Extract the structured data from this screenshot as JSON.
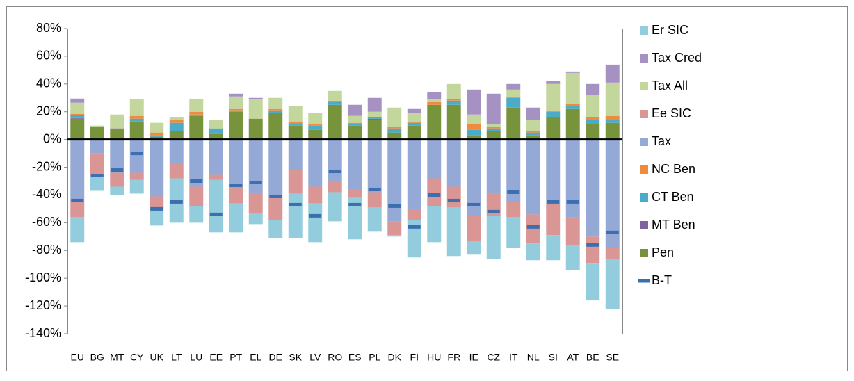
{
  "chart_data": {
    "type": "stacked-bar",
    "categories": [
      "EU",
      "BG",
      "MT",
      "CY",
      "UK",
      "LT",
      "LU",
      "EE",
      "PT",
      "EL",
      "DE",
      "SK",
      "LV",
      "RO",
      "ES",
      "PL",
      "DK",
      "FI",
      "HU",
      "FR",
      "IE",
      "CZ",
      "IT",
      "NL",
      "SI",
      "AT",
      "BE",
      "SE"
    ],
    "series": [
      {
        "name": "Pen",
        "color": "#77933c",
        "values": [
          15,
          9,
          7,
          13,
          2,
          6,
          17,
          4,
          20,
          15,
          19,
          10,
          7,
          25,
          10,
          14,
          5,
          10,
          25,
          25,
          3,
          6,
          23,
          3,
          16,
          22,
          11,
          12
        ]
      },
      {
        "name": "MT Ben",
        "color": "#7f63a1",
        "values": [
          0.5,
          0,
          1,
          0,
          0,
          0,
          0,
          0,
          0,
          0,
          0,
          0,
          0,
          0,
          0,
          1,
          0,
          0,
          0,
          0,
          0,
          0,
          0,
          0,
          0,
          0,
          0,
          0
        ]
      },
      {
        "name": "CT Ben",
        "color": "#4aacc6",
        "values": [
          2,
          0,
          0,
          2,
          1,
          6,
          1,
          4,
          1,
          0,
          2,
          1,
          3,
          2,
          1,
          1,
          3,
          2,
          0,
          3,
          4,
          2,
          7,
          2,
          4,
          2,
          3,
          2
        ]
      },
      {
        "name": "NC Ben",
        "color": "#f08a3c",
        "values": [
          1,
          0,
          0,
          2,
          2,
          2,
          2,
          0,
          1,
          0,
          1,
          2,
          1,
          1,
          1,
          0,
          1,
          1,
          2,
          1,
          4,
          1,
          1,
          1,
          1,
          2,
          2,
          3
        ]
      },
      {
        "name": "Tax",
        "color": "#95a9d6",
        "values": [
          -45,
          -10,
          -24,
          -24,
          -41,
          -17,
          -34,
          -25,
          -35,
          -39,
          -42,
          -22,
          -34,
          -30,
          -36,
          -38,
          -59,
          -50,
          -28,
          -34,
          -55,
          -39,
          -45,
          -54,
          -46,
          -56,
          -70,
          -78
        ]
      },
      {
        "name": "Ee SIC",
        "color": "#d99694",
        "values": [
          -11,
          -16,
          -10,
          -5,
          -10,
          -11,
          -14,
          -4,
          -11,
          -14,
          -16,
          -17,
          -12,
          -8,
          -6,
          -11,
          -10,
          -8,
          -20,
          -15,
          -18,
          -16,
          -11,
          -21,
          -23,
          -20,
          -19,
          -8
        ]
      },
      {
        "name": "Tax All",
        "color": "#c3d69b",
        "values": [
          8,
          1,
          10,
          12,
          7,
          2,
          9,
          6,
          9,
          14,
          8,
          11,
          8,
          7,
          5,
          4,
          14,
          6,
          2,
          11,
          7,
          2,
          5,
          8,
          19,
          22,
          16,
          24
        ]
      },
      {
        "name": "Tax Cred",
        "color": "#a692c2",
        "values": [
          3,
          0,
          0,
          0,
          0,
          0,
          0,
          0,
          2,
          1,
          0,
          0,
          0,
          0,
          8,
          10,
          0,
          3,
          5,
          0,
          18,
          22,
          4,
          9,
          2,
          1,
          8,
          13
        ]
      },
      {
        "name": "Er SIC",
        "color": "#93cddd",
        "values": [
          -18,
          -11,
          -6,
          -10,
          -11,
          -32,
          -12,
          -38,
          -21,
          -8,
          -13,
          -32,
          -28,
          -21,
          -30,
          -17,
          -1,
          -27,
          -26,
          -35,
          -10,
          -31,
          -22,
          -12,
          -18,
          -18,
          -27,
          -36
        ]
      }
    ],
    "markers": {
      "name": "B-T",
      "color": "#3c6fb0",
      "values": [
        -44,
        -26,
        -22,
        -10,
        -50,
        -45,
        -30,
        -54,
        -33,
        -31,
        -41,
        -47,
        -55,
        -23,
        -47,
        -36,
        -48,
        -63,
        -40,
        -44,
        -47,
        -52,
        -38,
        -63,
        -45,
        -45,
        -76,
        -67
      ]
    },
    "ylim": [
      -140,
      80
    ],
    "yticks": [
      {
        "value": 80,
        "label": "80%"
      },
      {
        "value": 60,
        "label": "60%"
      },
      {
        "value": 40,
        "label": "40%"
      },
      {
        "value": 20,
        "label": "20%"
      },
      {
        "value": 0,
        "label": "0%"
      },
      {
        "value": -20,
        "label": "-20%"
      },
      {
        "value": -40,
        "label": "-40%"
      },
      {
        "value": -60,
        "label": "-60%"
      },
      {
        "value": -80,
        "label": "-80%"
      },
      {
        "value": -100,
        "label": "-100%"
      },
      {
        "value": -120,
        "label": "-120%"
      },
      {
        "value": -140,
        "label": "-140%"
      }
    ],
    "legend": "right"
  }
}
